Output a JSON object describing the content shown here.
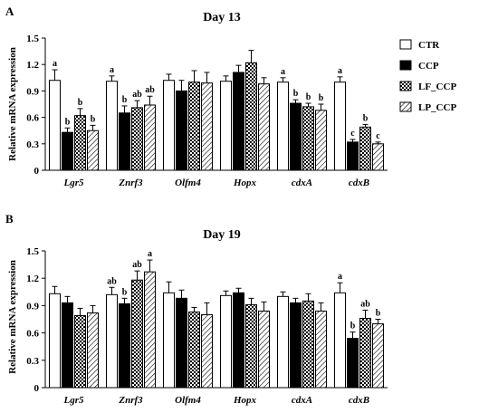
{
  "colors": {
    "CTR": "#ffffff",
    "CCP": "#000000",
    "LF_CCP": "checker",
    "LP_CCP": "hatch"
  },
  "legend": [
    "CTR",
    "CCP",
    "LF_CCP",
    "LP_CCP"
  ],
  "chart_data": [
    {
      "type": "bar",
      "panel": "A",
      "title": "Day 13",
      "ylabel": "Relative mRNA expression",
      "ylim": [
        0,
        1.5
      ],
      "yticks": [
        "0",
        "0.3",
        "0.6",
        "0.9",
        "1.2",
        "1.5"
      ],
      "categories": [
        "Lgr5",
        "Znrf3",
        "Olfm4",
        "Hopx",
        "cdxA",
        "cdxB"
      ],
      "series": [
        {
          "name": "CTR",
          "values": [
            1.02,
            1.01,
            1.02,
            1.01,
            1.0,
            1.0
          ],
          "errors": [
            0.12,
            0.06,
            0.07,
            0.06,
            0.05,
            0.06
          ],
          "labels": [
            "a",
            "a",
            "",
            "",
            "a",
            "a"
          ]
        },
        {
          "name": "CCP",
          "values": [
            0.43,
            0.65,
            0.9,
            1.11,
            0.76,
            0.32
          ],
          "errors": [
            0.05,
            0.08,
            0.12,
            0.08,
            0.04,
            0.03
          ],
          "labels": [
            "b",
            "b",
            "",
            "",
            "b",
            "c"
          ]
        },
        {
          "name": "LF_CCP",
          "values": [
            0.62,
            0.71,
            1.0,
            1.22,
            0.72,
            0.49
          ],
          "errors": [
            0.08,
            0.08,
            0.13,
            0.14,
            0.04,
            0.03
          ],
          "labels": [
            "b",
            "ab",
            "",
            "",
            "b",
            "b"
          ]
        },
        {
          "name": "LP_CCP",
          "values": [
            0.45,
            0.74,
            0.99,
            0.98,
            0.68,
            0.3
          ],
          "errors": [
            0.06,
            0.1,
            0.12,
            0.07,
            0.07,
            0.02
          ],
          "labels": [
            "b",
            "ab",
            "",
            "",
            "b",
            "c"
          ]
        }
      ]
    },
    {
      "type": "bar",
      "panel": "B",
      "title": "Day 19",
      "ylabel": "Relative mRNA expression",
      "ylim": [
        0,
        1.5
      ],
      "yticks": [
        "0",
        "0.3",
        "0.6",
        "0.9",
        "1.2",
        "1.5"
      ],
      "categories": [
        "Lgr5",
        "Znrf3",
        "Olfm4",
        "Hopx",
        "cdxA",
        "cdxB"
      ],
      "series": [
        {
          "name": "CTR",
          "values": [
            1.03,
            1.02,
            1.04,
            1.01,
            1.0,
            1.04
          ],
          "errors": [
            0.08,
            0.08,
            0.12,
            0.05,
            0.05,
            0.11
          ],
          "labels": [
            "",
            "ab",
            "",
            "",
            "",
            "a"
          ]
        },
        {
          "name": "CCP",
          "values": [
            0.93,
            0.92,
            0.98,
            1.04,
            0.93,
            0.54
          ],
          "errors": [
            0.07,
            0.06,
            0.09,
            0.05,
            0.05,
            0.07
          ],
          "labels": [
            "",
            "b",
            "",
            "",
            "",
            "b"
          ]
        },
        {
          "name": "LF_CCP",
          "values": [
            0.79,
            1.18,
            0.83,
            0.91,
            0.95,
            0.76
          ],
          "errors": [
            0.08,
            0.1,
            0.05,
            0.07,
            0.08,
            0.09
          ],
          "labels": [
            "",
            "ab",
            "",
            "",
            "",
            "ab"
          ]
        },
        {
          "name": "LP_CCP",
          "values": [
            0.82,
            1.27,
            0.8,
            0.84,
            0.84,
            0.7
          ],
          "errors": [
            0.08,
            0.13,
            0.13,
            0.1,
            0.09,
            0.05
          ],
          "labels": [
            "",
            "a",
            "",
            "",
            "",
            "b"
          ]
        }
      ]
    }
  ]
}
